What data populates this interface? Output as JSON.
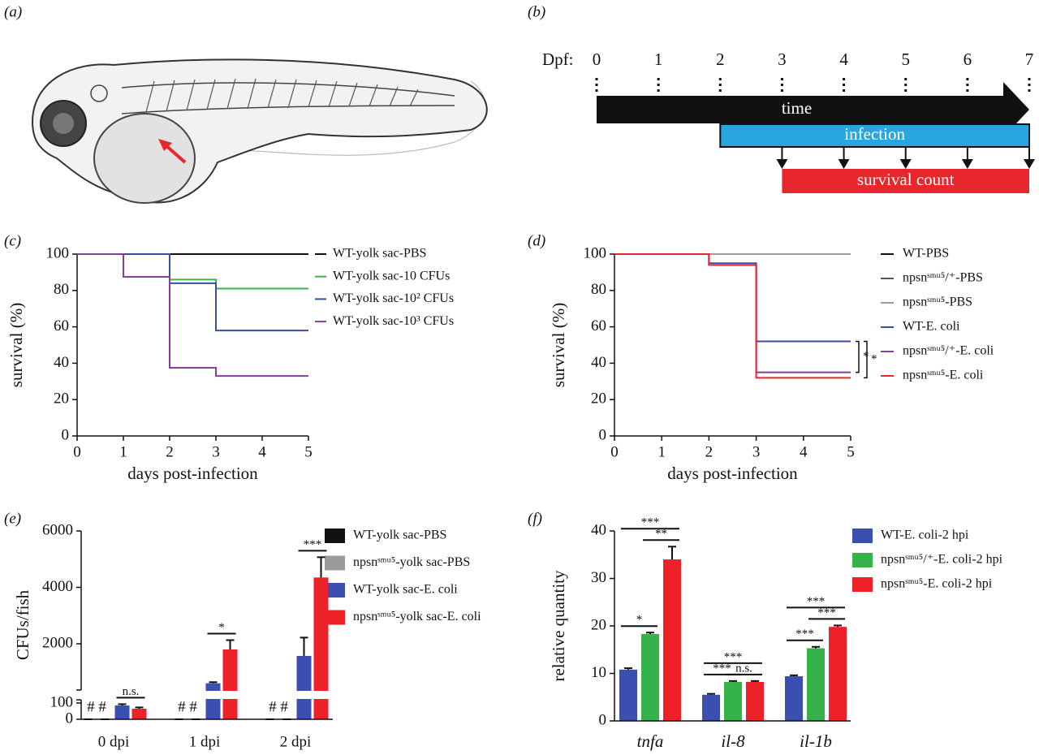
{
  "panel_labels": [
    "(a)",
    "(b)",
    "(c)",
    "(d)",
    "(e)",
    "(f)"
  ],
  "timeline": {
    "axis_label": "Dpf:",
    "ticks": [
      0,
      1,
      2,
      3,
      4,
      5,
      6,
      7
    ],
    "bars": [
      {
        "label": "time",
        "start": 0,
        "end": 7,
        "color": "#111111"
      },
      {
        "label": "infection",
        "start": 2,
        "end": 7,
        "color": "#2aa6df"
      },
      {
        "label": "survival count",
        "start": 3,
        "end": 7,
        "color": "#e8262b"
      }
    ],
    "count_days": [
      3,
      4,
      5,
      6,
      7
    ]
  },
  "chart_data": [
    {
      "type": "line",
      "step": true,
      "xlabel": "days post-infection",
      "ylabel": "survival (%)",
      "x": [
        0,
        1,
        2,
        3,
        4,
        5
      ],
      "xlim": [
        0,
        5
      ],
      "ylim": [
        0,
        100
      ],
      "xticks": [
        0,
        1,
        2,
        3,
        4,
        5
      ],
      "yticks": [
        0,
        20,
        40,
        60,
        80,
        100
      ],
      "series": [
        {
          "name": "WT-yolk sac-PBS",
          "color": "#111111",
          "values": [
            100,
            100,
            100,
            100,
            100,
            100
          ]
        },
        {
          "name": "WT-yolk sac-10 CFUs",
          "color": "#3cb54a",
          "values": [
            100,
            100,
            86,
            81,
            81,
            81
          ]
        },
        {
          "name": "WT-yolk sac-10² CFUs",
          "color": "#3a4fa2",
          "values": [
            100,
            100,
            84,
            58,
            58,
            58
          ]
        },
        {
          "name": "WT-yolk sac-10³ CFUs",
          "color": "#8a3b9e",
          "values": [
            100,
            87.5,
            37.5,
            33,
            33,
            33
          ]
        }
      ]
    },
    {
      "type": "line",
      "step": true,
      "xlabel": "days post-infection",
      "ylabel": "survival (%)",
      "x": [
        0,
        1,
        2,
        3,
        4,
        5
      ],
      "xlim": [
        0,
        5
      ],
      "ylim": [
        0,
        100
      ],
      "xticks": [
        0,
        1,
        2,
        3,
        4,
        5
      ],
      "yticks": [
        0,
        20,
        40,
        60,
        80,
        100
      ],
      "series": [
        {
          "name": "WT-PBS",
          "color": "#111111",
          "values": [
            100,
            100,
            100,
            100,
            100,
            100
          ]
        },
        {
          "name": "npsnˢᵐᵘ⁵/⁺-PBS",
          "color": "#555555",
          "values": [
            100,
            100,
            100,
            100,
            100,
            100
          ]
        },
        {
          "name": "npsnˢᵐᵘ⁵-PBS",
          "color": "#999999",
          "values": [
            100,
            100,
            100,
            100,
            100,
            100
          ]
        },
        {
          "name": "WT-E. coli",
          "color": "#3a4fa2",
          "values": [
            100,
            100,
            95,
            52,
            52,
            52
          ]
        },
        {
          "name": "npsnˢᵐᵘ⁵/⁺-E. coli",
          "color": "#8a3b9e",
          "values": [
            100,
            100,
            94,
            35,
            35,
            35
          ]
        },
        {
          "name": "npsnˢᵐᵘ⁵-E. coli",
          "color": "#e8262b",
          "values": [
            100,
            100,
            94,
            32,
            32,
            32
          ]
        }
      ],
      "brackets": [
        {
          "text": "*",
          "series": [
            3,
            4
          ]
        },
        {
          "text": "*",
          "series": [
            3,
            5
          ]
        }
      ]
    },
    {
      "type": "bar",
      "ylabel": "CFUs/fish",
      "categories": [
        "0 dpi",
        "1 dpi",
        "2 dpi"
      ],
      "ylim": [
        0,
        6000
      ],
      "ybreak": [
        120,
        360
      ],
      "yticks": [
        0,
        100,
        2000,
        4000,
        6000
      ],
      "series": [
        {
          "name": "WT-yolk sac-PBS",
          "color": "#111111",
          "values": [
            0,
            0,
            0
          ],
          "errors": [
            0,
            0,
            0
          ]
        },
        {
          "name": "npsnˢᵐᵘ⁵-yolk sac-PBS",
          "color": "#9b9b9b",
          "values": [
            0,
            0,
            0
          ],
          "errors": [
            0,
            0,
            0
          ]
        },
        {
          "name": "WT-yolk sac-E. coli",
          "color": "#3a4fb0",
          "values": [
            85,
            600,
            1570
          ],
          "errors": [
            8,
            40,
            650
          ]
        },
        {
          "name": "npsnˢᵐᵘ⁵-yolk sac-E. coli",
          "color": "#ee2128",
          "values": [
            65,
            1800,
            4350
          ],
          "errors": [
            8,
            330,
            720
          ]
        }
      ],
      "annotations": [
        {
          "text": "# #",
          "category": 0
        },
        {
          "text": "# #",
          "category": 1
        },
        {
          "text": "# #",
          "category": 2
        }
      ],
      "significance": [
        {
          "text": "n.s.",
          "category": 0,
          "series": [
            2,
            3
          ]
        },
        {
          "text": "*",
          "category": 1,
          "series": [
            2,
            3
          ]
        },
        {
          "text": "***",
          "category": 2,
          "series": [
            2,
            3
          ]
        }
      ]
    },
    {
      "type": "bar",
      "ylabel": "relative quantity",
      "categories": [
        "tnfa",
        "il-8",
        "il-1b"
      ],
      "ylim": [
        0,
        40
      ],
      "yticks": [
        0,
        10,
        20,
        30,
        40
      ],
      "series": [
        {
          "name": "WT-E. coli-2 hpi",
          "color": "#3a4fb0",
          "values": [
            10.8,
            5.5,
            9.4
          ],
          "errors": [
            0.3,
            0.2,
            0.2
          ]
        },
        {
          "name": "npsnˢᵐᵘ⁵/⁺-E. coli-2 hpi",
          "color": "#36b24a",
          "values": [
            18.3,
            8.2,
            15.3
          ],
          "errors": [
            0.3,
            0.2,
            0.3
          ]
        },
        {
          "name": "npsnˢᵐᵘ⁵-E. coli-2 hpi",
          "color": "#ee2128",
          "values": [
            34,
            8.2,
            19.8
          ],
          "errors": [
            2.7,
            0.2,
            0.3
          ]
        }
      ],
      "significance": [
        {
          "text": "*",
          "category": 0,
          "series": [
            0,
            1
          ]
        },
        {
          "text": "**",
          "category": 0,
          "series": [
            1,
            2
          ]
        },
        {
          "text": "***",
          "category": 0,
          "series": [
            0,
            2
          ]
        },
        {
          "text": "***",
          "category": 1,
          "series": [
            0,
            1
          ]
        },
        {
          "text": "n.s.",
          "category": 1,
          "series": [
            1,
            2
          ]
        },
        {
          "text": "***",
          "category": 1,
          "series": [
            0,
            2
          ]
        },
        {
          "text": "***",
          "category": 2,
          "series": [
            0,
            1
          ]
        },
        {
          "text": "***",
          "category": 2,
          "series": [
            1,
            2
          ]
        },
        {
          "text": "***",
          "category": 2,
          "series": [
            0,
            2
          ]
        }
      ]
    }
  ]
}
